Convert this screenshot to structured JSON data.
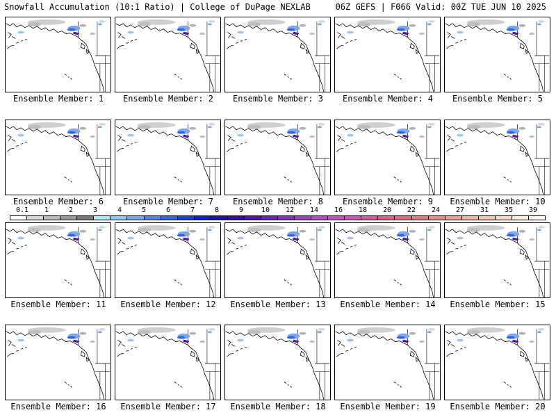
{
  "header": {
    "left": "Snowfall Accumulation (10:1 Ratio) | College of DuPage NEXLAB",
    "right": "06Z GEFS | F066 Valid: 00Z TUE JUN 10 2025"
  },
  "panels": [
    {
      "label": "Ensemble Member: 1"
    },
    {
      "label": "Ensemble Member: 2"
    },
    {
      "label": "Ensemble Member: 3"
    },
    {
      "label": "Ensemble Member: 4"
    },
    {
      "label": "Ensemble Member: 5"
    },
    {
      "label": "Ensemble Member: 6"
    },
    {
      "label": "Ensemble Member: 7"
    },
    {
      "label": "Ensemble Member: 8"
    },
    {
      "label": "Ensemble Member: 9"
    },
    {
      "label": "Ensemble Member: 10"
    },
    {
      "label": "Ensemble Member: 11"
    },
    {
      "label": "Ensemble Member: 12"
    },
    {
      "label": "Ensemble Member: 13"
    },
    {
      "label": "Ensemble Member: 14"
    },
    {
      "label": "Ensemble Member: 15"
    },
    {
      "label": "Ensemble Member: 16"
    },
    {
      "label": "Ensemble Member: 17"
    },
    {
      "label": "Ensemble Member: 18"
    },
    {
      "label": "Ensemble Member: 19"
    },
    {
      "label": "Ensemble Member: 20"
    }
  ],
  "colorbar": {
    "labels": [
      "0.1",
      "1",
      "2",
      "3",
      "4",
      "5",
      "6",
      "7",
      "8",
      "9",
      "10",
      "12",
      "14",
      "16",
      "18",
      "20",
      "22",
      "24",
      "27",
      "31",
      "35",
      "39"
    ],
    "colors": [
      "#ffffff",
      "#d9d9d9",
      "#bdbdbd",
      "#9a9a9a",
      "#7a7a7a",
      "#a8ecf5",
      "#8cc8f2",
      "#6fa8ef",
      "#4e86ec",
      "#2e64e8",
      "#1840e0",
      "#0a1ee6",
      "#2010b0",
      "#3a0e9a",
      "#5214a6",
      "#6a22b4",
      "#8430be",
      "#9c3cc8",
      "#b448cc",
      "#c84cc4",
      "#d452b4",
      "#d8589e",
      "#dc5e8c",
      "#e06a80",
      "#e47a7c",
      "#e88c80",
      "#eca08a",
      "#f0b498",
      "#f4c8a8",
      "#f8dcc0",
      "#fbeeda",
      "#fdf8ee"
    ]
  }
}
